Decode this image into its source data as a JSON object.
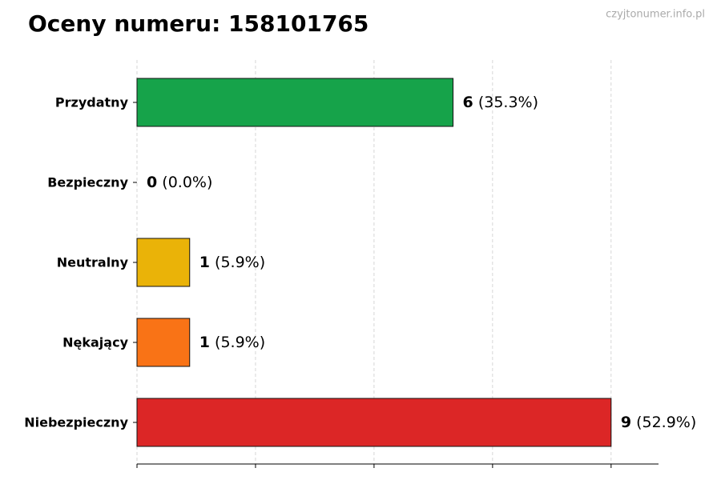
{
  "chart_data": {
    "type": "barh",
    "title": "Oceny numeru: 158101765",
    "watermark": "czyjtonumer.info.pl",
    "categories": [
      "Przydatny",
      "Bezpieczny",
      "Neutralny",
      "Nękający",
      "Niebezpieczny"
    ],
    "values": [
      6,
      0,
      1,
      1,
      9
    ],
    "share_labels": [
      "(35.3%)",
      "(0.0%)",
      "(5.9%)",
      "(5.9%)",
      "(52.9%)"
    ],
    "colors": [
      "#16a34a",
      "#2563eb",
      "#eab308",
      "#f97316",
      "#dc2626"
    ],
    "xlim": [
      0,
      9.9
    ],
    "xticks": [
      0,
      2.25,
      4.5,
      6.75,
      9
    ],
    "grid": true
  }
}
